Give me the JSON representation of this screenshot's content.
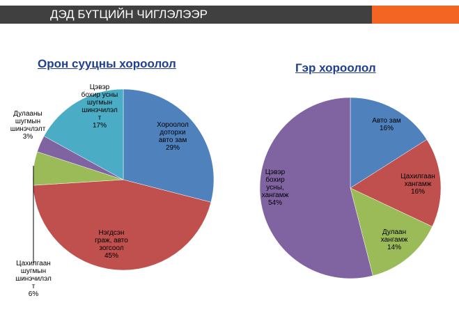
{
  "header": {
    "title": "ДЭД БҮТЦИЙН ЧИГЛЭЛЭЭР",
    "bar_color": "#404040",
    "accent_color": "#f26522"
  },
  "chart_data": [
    {
      "type": "pie",
      "title": "Орон сууцны хороолол",
      "slices": [
        {
          "label": [
            "Хороолол",
            "доторхи",
            "авто зам",
            "29%"
          ],
          "value": 29,
          "color": "#4f81bd"
        },
        {
          "label": [
            "Нэгдсэн",
            "граж, авто",
            "зогсоол",
            "45%"
          ],
          "value": 45,
          "color": "#c0504d"
        },
        {
          "label": [
            "Цахилгаан",
            "шугмын",
            "шинэчилэл",
            "т",
            "6%"
          ],
          "value": 6,
          "color": "#9bbb59"
        },
        {
          "label": [
            "Дулааны",
            "шугмын",
            "шинэчлэлт",
            "3%"
          ],
          "value": 3,
          "color": "#8064a2"
        },
        {
          "label": [
            "Цэвэр",
            "бохир усны",
            "шугмын",
            "шинэчилэл",
            "т",
            "17%"
          ],
          "value": 17,
          "color": "#4bacc6"
        }
      ]
    },
    {
      "type": "pie",
      "title": "Гэр хороолол",
      "slices": [
        {
          "label": [
            "Авто зам",
            "16%"
          ],
          "value": 16,
          "color": "#4f81bd"
        },
        {
          "label": [
            "Цахилгаан",
            "хангамж",
            "16%"
          ],
          "value": 16,
          "color": "#c0504d"
        },
        {
          "label": [
            "Дулаан",
            "хангамж",
            "14%"
          ],
          "value": 14,
          "color": "#9bbb59"
        },
        {
          "label": [
            "Цэвэр",
            "бохир",
            "усны,",
            "хангамж",
            "54%"
          ],
          "value": 54,
          "color": "#8064a2"
        }
      ]
    }
  ]
}
